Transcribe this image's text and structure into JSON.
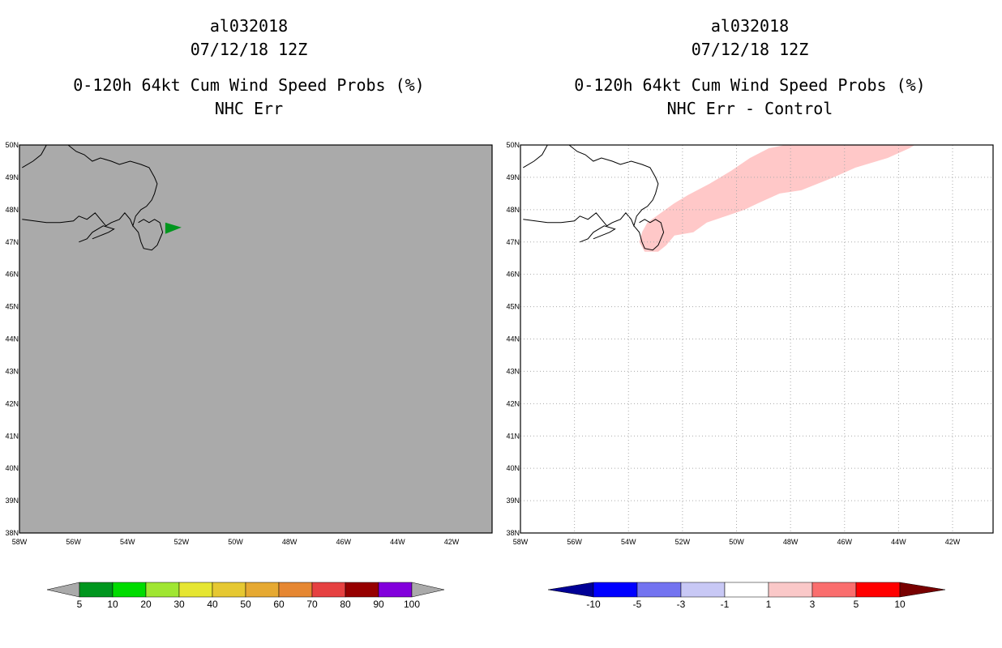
{
  "chart_data": [
    {
      "type": "heatmap",
      "panel": "left",
      "title_lines": [
        "al032018",
        "07/12/18 12Z",
        "0-120h 64kt Cum Wind Speed Probs (%)",
        "NHC Err"
      ],
      "x_ticks": [
        "58W",
        "56W",
        "54W",
        "52W",
        "50W",
        "48W",
        "46W",
        "44W",
        "42W"
      ],
      "y_ticks": [
        "38N",
        "39N",
        "40N",
        "41N",
        "42N",
        "43N",
        "44N",
        "45N",
        "46N",
        "47N",
        "48N",
        "49N",
        "50N"
      ],
      "xlim": [
        -58,
        -40.5
      ],
      "ylim": [
        38,
        50
      ],
      "background_color": "#aaaaaa",
      "colorbar": {
        "labels": [
          "5",
          "10",
          "20",
          "30",
          "40",
          "50",
          "60",
          "70",
          "80",
          "90",
          "100"
        ],
        "colors": [
          "#00961e",
          "#00dc00",
          "#a0e632",
          "#e6e632",
          "#e6c832",
          "#e6a932",
          "#e68732",
          "#e64141",
          "#960000",
          "#8200dc"
        ]
      },
      "region_value": "5-10",
      "region_color": "#00961e"
    },
    {
      "type": "heatmap",
      "panel": "right",
      "title_lines": [
        "al032018",
        "07/12/18 12Z",
        "0-120h 64kt Cum Wind Speed Probs (%)",
        "NHC Err - Control"
      ],
      "x_ticks": [
        "58W",
        "56W",
        "54W",
        "52W",
        "50W",
        "48W",
        "46W",
        "44W",
        "42W"
      ],
      "y_ticks": [
        "38N",
        "39N",
        "40N",
        "41N",
        "42N",
        "43N",
        "44N",
        "45N",
        "46N",
        "47N",
        "48N",
        "49N",
        "50N"
      ],
      "xlim": [
        -58,
        -40.5
      ],
      "ylim": [
        38,
        50
      ],
      "background_color": "#ffffff",
      "colorbar": {
        "labels": [
          "-10",
          "-5",
          "-3",
          "-1",
          "1",
          "3",
          "5",
          "10"
        ],
        "colors": [
          "#0000c8",
          "#0000ff",
          "#7373f0",
          "#c8c8f5",
          "#ffffff",
          "#fac8c8",
          "#fa6e6e",
          "#ff0000",
          "#780000"
        ],
        "below_color": "#000096"
      },
      "region_value": "1-3",
      "region_color": "#ffc8c8"
    }
  ]
}
